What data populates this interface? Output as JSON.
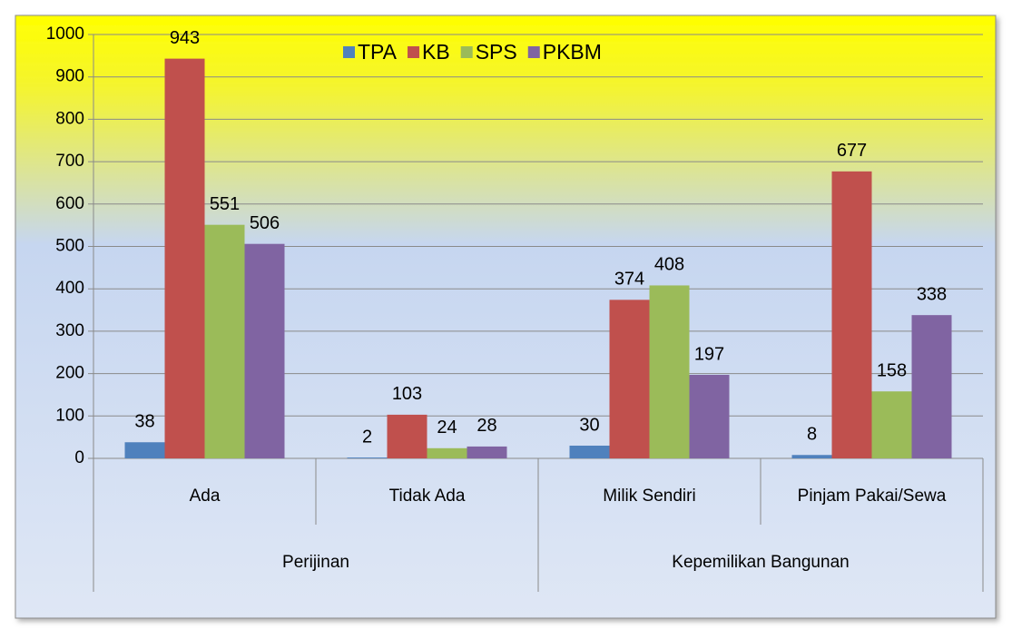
{
  "chart_data": {
    "type": "bar",
    "groups": [
      {
        "name": "Perijinan",
        "categories": [
          "Ada",
          "Tidak Ada"
        ]
      },
      {
        "name": "Kepemilikan Bangunan",
        "categories": [
          "Milik Sendiri",
          "Pinjam Pakai/Sewa"
        ]
      }
    ],
    "series": [
      {
        "name": "TPA",
        "color": "#4f81bd",
        "values": [
          38,
          2,
          30,
          8
        ]
      },
      {
        "name": "KB",
        "color": "#c0504d",
        "values": [
          943,
          103,
          374,
          677
        ]
      },
      {
        "name": "SPS",
        "color": "#9bbb59",
        "values": [
          551,
          24,
          408,
          158
        ]
      },
      {
        "name": "PKBM",
        "color": "#8064a2",
        "values": [
          506,
          28,
          197,
          338
        ]
      }
    ],
    "ylim": [
      0,
      1000
    ],
    "yticks": [
      0,
      100,
      200,
      300,
      400,
      500,
      600,
      700,
      800,
      900,
      1000
    ],
    "grid": true,
    "legend": "top"
  }
}
